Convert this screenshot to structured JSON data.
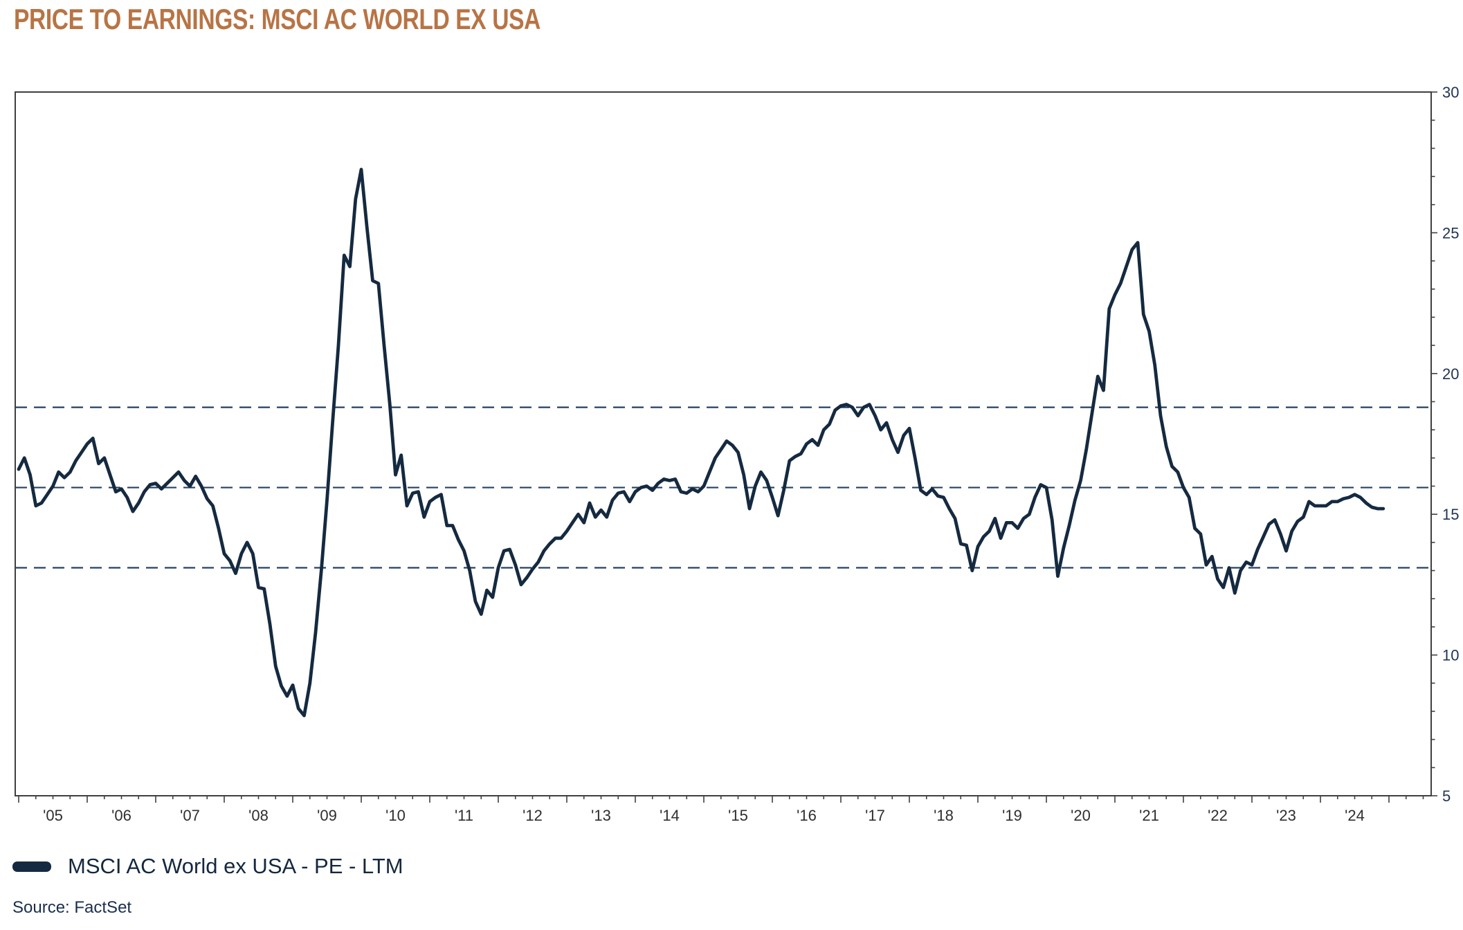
{
  "title": {
    "text": "PRICE TO EARNINGS: MSCI AC WORLD EX USA"
  },
  "legend": {
    "label": "MSCI AC World ex USA - PE - LTM"
  },
  "source": {
    "text": "Source: FactSet"
  },
  "colors": {
    "title": "#B87445",
    "line": "#152A40",
    "dashed": "#26415F",
    "frame": "#3F3F3F",
    "y_label": "#223455",
    "x_label": "#2E2E2E",
    "legend_text": "#13273F",
    "source_text": "#1B2D4D",
    "background": "#FFFFFF"
  },
  "chart_data": {
    "type": "line",
    "title": "PRICE TO EARNINGS: MSCI AC WORLD EX USA",
    "series_name": "MSCI AC World ex USA - PE - LTM",
    "frequency": "monthly",
    "x_start_year": 2005,
    "x_end_year": 2024,
    "x_tick_labels": [
      "'05",
      "'06",
      "'07",
      "'08",
      "'09",
      "'10",
      "'11",
      "'12",
      "'13",
      "'14",
      "'15",
      "'16",
      "'17",
      "'18",
      "'19",
      "'20",
      "'21",
      "'22",
      "'23",
      "'24"
    ],
    "y_ticks": [
      5,
      10,
      15,
      20,
      25,
      30
    ],
    "y_minor_step": 1,
    "ylim": [
      5,
      30
    ],
    "grid": "none",
    "legend_position": "bottom-left",
    "reference_lines": {
      "upper": 18.8,
      "middle": 15.95,
      "lower": 13.1,
      "style": "dashed"
    },
    "values": [
      16.6,
      17.0,
      16.4,
      15.3,
      15.4,
      15.7,
      16.0,
      16.5,
      16.3,
      16.5,
      16.9,
      17.2,
      17.5,
      17.7,
      16.8,
      17.0,
      16.4,
      15.8,
      15.9,
      15.6,
      15.1,
      15.4,
      15.8,
      16.05,
      16.1,
      15.9,
      16.1,
      16.3,
      16.5,
      16.2,
      16.0,
      16.35,
      16.0,
      15.55,
      15.3,
      14.5,
      13.6,
      13.35,
      12.9,
      13.6,
      14.0,
      13.6,
      12.4,
      12.35,
      11.1,
      9.6,
      8.9,
      8.54,
      8.93,
      8.1,
      7.85,
      9.0,
      10.8,
      13.0,
      15.5,
      18.3,
      21.0,
      24.2,
      23.8,
      26.2,
      27.25,
      25.2,
      23.3,
      23.2,
      21.0,
      18.9,
      16.4,
      17.1,
      15.3,
      15.75,
      15.8,
      14.9,
      15.45,
      15.6,
      15.7,
      14.6,
      14.6,
      14.1,
      13.7,
      13.0,
      11.9,
      11.45,
      12.3,
      12.05,
      13.1,
      13.7,
      13.75,
      13.2,
      12.5,
      12.75,
      13.05,
      13.3,
      13.7,
      13.95,
      14.15,
      14.15,
      14.4,
      14.7,
      15.0,
      14.7,
      15.4,
      14.9,
      15.15,
      14.9,
      15.5,
      15.75,
      15.8,
      15.45,
      15.8,
      15.95,
      16.0,
      15.85,
      16.1,
      16.25,
      16.2,
      16.25,
      15.8,
      15.75,
      15.9,
      15.8,
      16.0,
      16.5,
      17.0,
      17.3,
      17.6,
      17.45,
      17.2,
      16.4,
      15.2,
      16.0,
      16.5,
      16.2,
      15.6,
      14.95,
      15.85,
      16.9,
      17.05,
      17.15,
      17.5,
      17.65,
      17.45,
      18.0,
      18.2,
      18.7,
      18.85,
      18.9,
      18.8,
      18.5,
      18.8,
      18.9,
      18.5,
      18.0,
      18.25,
      17.65,
      17.2,
      17.8,
      18.05,
      17.0,
      15.85,
      15.7,
      15.9,
      15.65,
      15.6,
      15.2,
      14.85,
      13.95,
      13.9,
      13.0,
      13.85,
      14.2,
      14.4,
      14.85,
      14.15,
      14.7,
      14.7,
      14.5,
      14.85,
      15.0,
      15.6,
      16.05,
      15.95,
      14.8,
      12.8,
      13.8,
      14.6,
      15.5,
      16.2,
      17.3,
      18.6,
      19.9,
      19.4,
      22.3,
      22.8,
      23.2,
      23.8,
      24.4,
      24.65,
      22.1,
      21.5,
      20.3,
      18.5,
      17.4,
      16.7,
      16.5,
      15.95,
      15.6,
      14.5,
      14.3,
      13.2,
      13.5,
      12.7,
      12.4,
      13.1,
      12.2,
      13.0,
      13.3,
      13.2,
      13.75,
      14.2,
      14.65,
      14.8,
      14.3,
      13.7,
      14.4,
      14.75,
      14.9,
      15.45,
      15.3,
      15.3,
      15.3,
      15.45,
      15.45,
      15.55,
      15.6,
      15.7,
      15.6,
      15.4,
      15.25,
      15.2,
      15.2
    ]
  }
}
